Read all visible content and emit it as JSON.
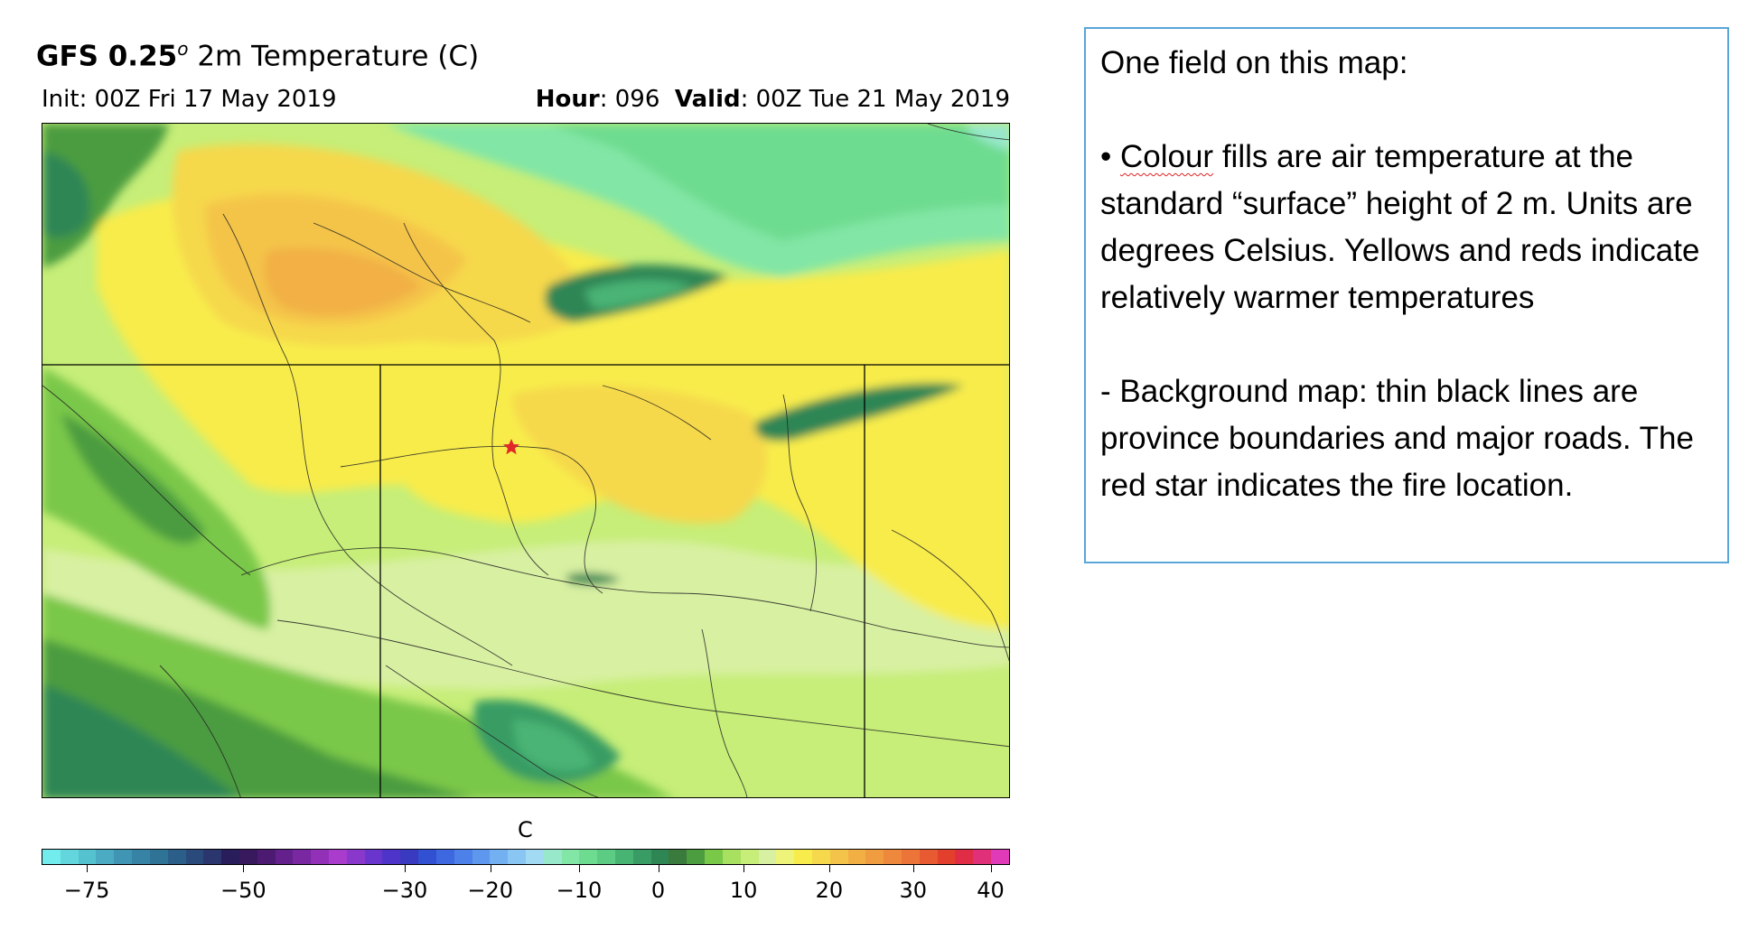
{
  "title": {
    "model_prefix": "GFS 0.25",
    "model_superscript": "o",
    "field": " 2m Temperature (C)"
  },
  "init": "Init: 00Z Fri 17 May 2019",
  "hour": {
    "label": "Hour",
    "value": ": 096"
  },
  "valid": {
    "label": "Valid",
    "value": ": 00Z Tue 21 May 2019"
  },
  "colorbar": {
    "label": "C",
    "min": -80,
    "max": 42,
    "ticks": [
      -75,
      -50,
      -30,
      -20,
      -10,
      0,
      10,
      20,
      30,
      40
    ],
    "tick_labels": [
      "−75",
      "−50",
      "−30",
      "−20",
      "−10",
      "0",
      "10",
      "20",
      "30",
      "40"
    ],
    "colors": [
      "#72ecec",
      "#62d6dc",
      "#55c2d0",
      "#4aabc2",
      "#3f95b3",
      "#3683a5",
      "#2f7396",
      "#2b5f8a",
      "#2b4a7c",
      "#2b356e",
      "#2a1d5c",
      "#38195e",
      "#4d1a72",
      "#64208c",
      "#7a27a2",
      "#9330b8",
      "#a93ccc",
      "#8a38cc",
      "#6a35cc",
      "#4e34c8",
      "#3a3ac0",
      "#3150d2",
      "#3d68e0",
      "#4d80e8",
      "#5d98ee",
      "#73b0f2",
      "#8ac6f4",
      "#a2daf4",
      "#98e8cc",
      "#82e6a6",
      "#6edc90",
      "#5ccc84",
      "#48b474",
      "#389c64",
      "#2e8654",
      "#3a7a3c",
      "#4c9c40",
      "#7ac848",
      "#a8e060",
      "#c6ee78",
      "#d8f0a2",
      "#eef37a",
      "#f8ec4c",
      "#f6d84c",
      "#f4c44a",
      "#f2b044",
      "#f09c40",
      "#ee883c",
      "#ec7438",
      "#e85a32",
      "#e2402c",
      "#e02c44",
      "#e0307a",
      "#e03ab8"
    ]
  },
  "map": {
    "legend_marker": "fire-location-star"
  },
  "annotation": {
    "heading": "One field on this map:",
    "bullet_mark": "• ",
    "bullet_underlined": "Colour",
    "bullet_text": " fills are air temperature at the standard “surface” height of 2 m. Units are degrees Celsius.  Yellows and reds indicate relatively warmer temperatures",
    "background_text": "- Background map: thin black lines are province boundaries and major roads. The red star indicates the fire location."
  }
}
